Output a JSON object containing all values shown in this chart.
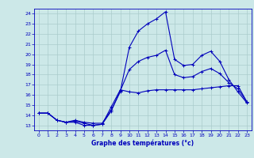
{
  "xlabel": "Graphe des températures (°c)",
  "bg_color": "#cce8e8",
  "grid_color": "#aacccc",
  "line_color": "#0000bb",
  "xlim": [
    -0.5,
    23.5
  ],
  "ylim": [
    12.5,
    24.5
  ],
  "xticks": [
    0,
    1,
    2,
    3,
    4,
    5,
    6,
    7,
    8,
    9,
    10,
    11,
    12,
    13,
    14,
    15,
    16,
    17,
    18,
    19,
    20,
    21,
    22,
    23
  ],
  "yticks": [
    13,
    14,
    15,
    16,
    17,
    18,
    19,
    20,
    21,
    22,
    23,
    24
  ],
  "line1_x": [
    0,
    1,
    2,
    3,
    4,
    5,
    6,
    7,
    8,
    9,
    10,
    11,
    12,
    13,
    14,
    15,
    16,
    17,
    18,
    19,
    20,
    21,
    22,
    23
  ],
  "line1_y": [
    14.2,
    14.2,
    13.5,
    13.3,
    13.3,
    13.0,
    13.0,
    13.1,
    14.8,
    16.5,
    16.3,
    16.2,
    16.4,
    16.5,
    16.5,
    16.5,
    16.5,
    16.5,
    16.6,
    16.7,
    16.8,
    16.9,
    16.9,
    15.3
  ],
  "line2_x": [
    0,
    1,
    2,
    3,
    4,
    5,
    6,
    7,
    8,
    9,
    10,
    11,
    12,
    13,
    14,
    15,
    16,
    17,
    18,
    19,
    20,
    21,
    22,
    23
  ],
  "line2_y": [
    14.2,
    14.2,
    13.5,
    13.3,
    13.5,
    13.3,
    13.2,
    13.2,
    14.5,
    16.3,
    20.7,
    22.3,
    23.0,
    23.5,
    24.2,
    19.5,
    18.9,
    19.0,
    19.9,
    20.3,
    19.3,
    17.5,
    16.3,
    15.2
  ],
  "line3_x": [
    0,
    1,
    2,
    3,
    4,
    5,
    6,
    7,
    8,
    9,
    10,
    11,
    12,
    13,
    14,
    15,
    16,
    17,
    18,
    19,
    20,
    21,
    22,
    23
  ],
  "line3_y": [
    14.2,
    14.2,
    13.5,
    13.3,
    13.4,
    13.2,
    13.0,
    13.1,
    14.4,
    16.4,
    18.5,
    19.3,
    19.7,
    19.9,
    20.4,
    18.0,
    17.7,
    17.8,
    18.3,
    18.6,
    18.1,
    17.2,
    16.6,
    15.3
  ]
}
